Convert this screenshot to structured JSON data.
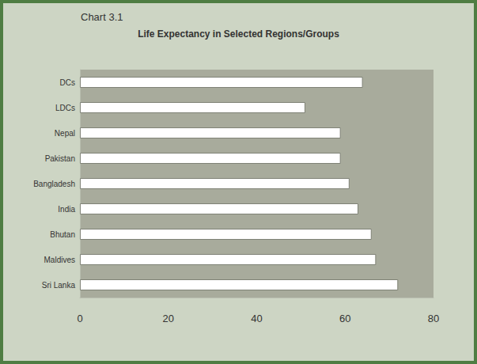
{
  "chart_data": {
    "type": "bar",
    "orientation": "horizontal",
    "title": "Chart 3.1",
    "subtitle": "Life Expectancy in Selected Regions/Groups",
    "categories": [
      "DCs",
      "LDCs",
      "Nepal",
      "Pakistan",
      "Bangladesh",
      "India",
      "Bhutan",
      "Maldives",
      "Sri Lanka"
    ],
    "values": [
      64,
      51,
      59,
      59,
      61,
      63,
      66,
      67,
      72
    ],
    "color": "#ffffff",
    "xlim": [
      0,
      80
    ],
    "xticks": [
      0,
      20,
      40,
      60,
      80
    ],
    "grid": false
  }
}
